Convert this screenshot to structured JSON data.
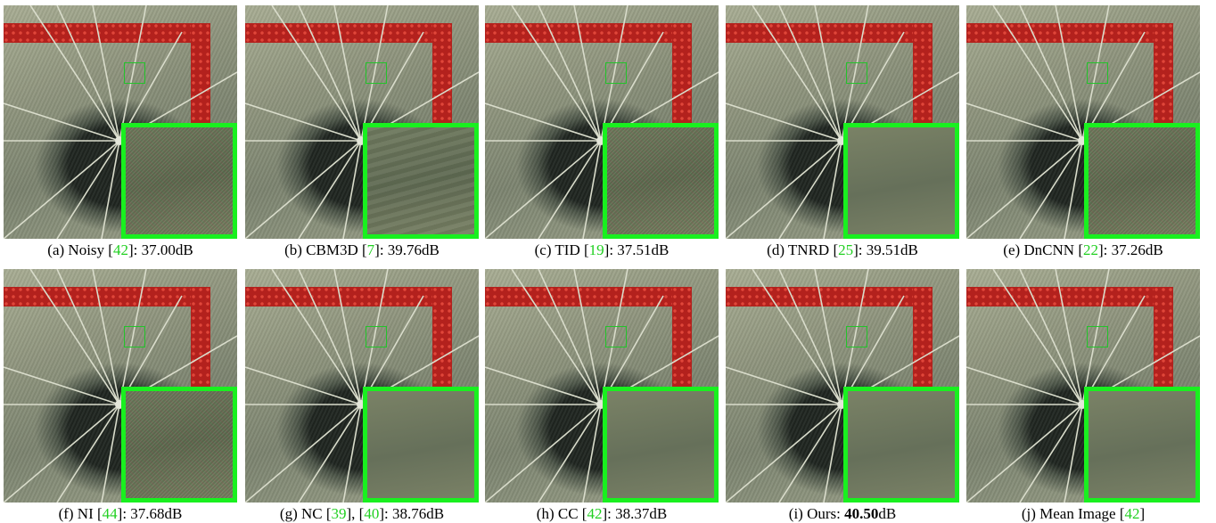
{
  "panels": [
    {
      "label": "(a) Noisy [",
      "ref": "42",
      "tail": "]: 37.00dB",
      "texture": "noisy"
    },
    {
      "label": "(b) CBM3D [",
      "ref": "7",
      "tail": "]: 39.76dB",
      "texture": "normal"
    },
    {
      "label": "(c) TID [",
      "ref": "19",
      "tail": "]: 37.51dB",
      "texture": "noisy"
    },
    {
      "label": "(d) TNRD [",
      "ref": "25",
      "tail": "]: 39.51dB",
      "texture": "smooth"
    },
    {
      "label": "(e) DnCNN [",
      "ref": "22",
      "tail": "]: 37.26dB",
      "texture": "noisy"
    },
    {
      "label": "(f) NI [",
      "ref": "44",
      "tail": "]: 37.68dB",
      "texture": "noisy"
    },
    {
      "label": "(g) NC [",
      "ref": "39",
      "mid": "], [",
      "ref2": "40",
      "tail": "]: 38.76dB",
      "texture": "smooth"
    },
    {
      "label": "(h) CC [",
      "ref": "42",
      "tail": "]: 38.37dB",
      "texture": "smooth"
    },
    {
      "label": "(i) Ours: ",
      "bold": "40.50",
      "tail": "dB",
      "texture": "smooth"
    },
    {
      "label": "(j) Mean Image [",
      "ref": "42",
      "tail": "]",
      "texture": "smooth"
    }
  ],
  "colors": {
    "reference_link": "#21d021",
    "inset_border": "#19f01f",
    "roi_border": "#22c42a",
    "fence": "#b3211d"
  }
}
